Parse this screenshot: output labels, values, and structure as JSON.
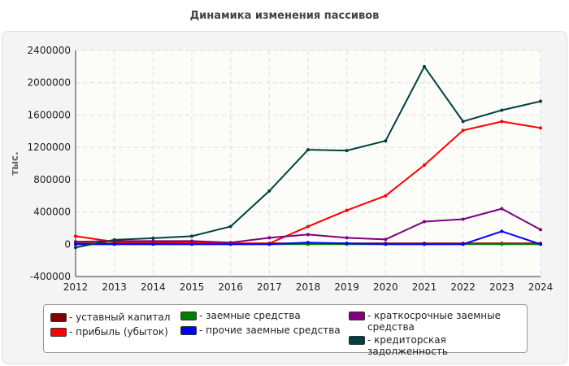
{
  "chart_data": {
    "type": "line",
    "title": "Динамика изменения пассивов",
    "ylabel": "тыс.",
    "xlabel": "",
    "x": [
      2012,
      2013,
      2014,
      2015,
      2016,
      2017,
      2018,
      2019,
      2020,
      2021,
      2022,
      2023,
      2024
    ],
    "ylim": [
      -400000,
      2400000
    ],
    "yticks": [
      -400000,
      0,
      400000,
      800000,
      1200000,
      1600000,
      2000000,
      2400000
    ],
    "grid": true,
    "legend": "bottom",
    "series": [
      {
        "name": "- уставный капитал",
        "color": "#800000",
        "values": [
          10000,
          10000,
          10000,
          10000,
          10000,
          10000,
          10000,
          10000,
          10000,
          10000,
          10000,
          10000,
          10000
        ]
      },
      {
        "name": "- прибыль (убыток)",
        "color": "#ff0000",
        "values": [
          100000,
          30000,
          30000,
          20000,
          10000,
          10000,
          220000,
          420000,
          600000,
          980000,
          1410000,
          1520000,
          1440000
        ]
      },
      {
        "name": "- заемные средства",
        "color": "#008000",
        "values": [
          0,
          0,
          0,
          0,
          0,
          0,
          0,
          0,
          0,
          0,
          0,
          0,
          0
        ]
      },
      {
        "name": "- прочие заемные средства",
        "color": "#0000ff",
        "values": [
          0,
          0,
          0,
          0,
          0,
          0,
          20000,
          10000,
          0,
          0,
          0,
          160000,
          0
        ]
      },
      {
        "name": "- краткосрочные заемные средства",
        "color": "#800080",
        "values": [
          30000,
          40000,
          40000,
          40000,
          20000,
          80000,
          120000,
          80000,
          60000,
          280000,
          310000,
          440000,
          180000
        ]
      },
      {
        "name": "- кредиторская задолженность",
        "color": "#004040",
        "values": [
          -40000,
          55000,
          75000,
          100000,
          220000,
          660000,
          1170000,
          1160000,
          1280000,
          2200000,
          1520000,
          1660000,
          1770000
        ]
      }
    ]
  }
}
